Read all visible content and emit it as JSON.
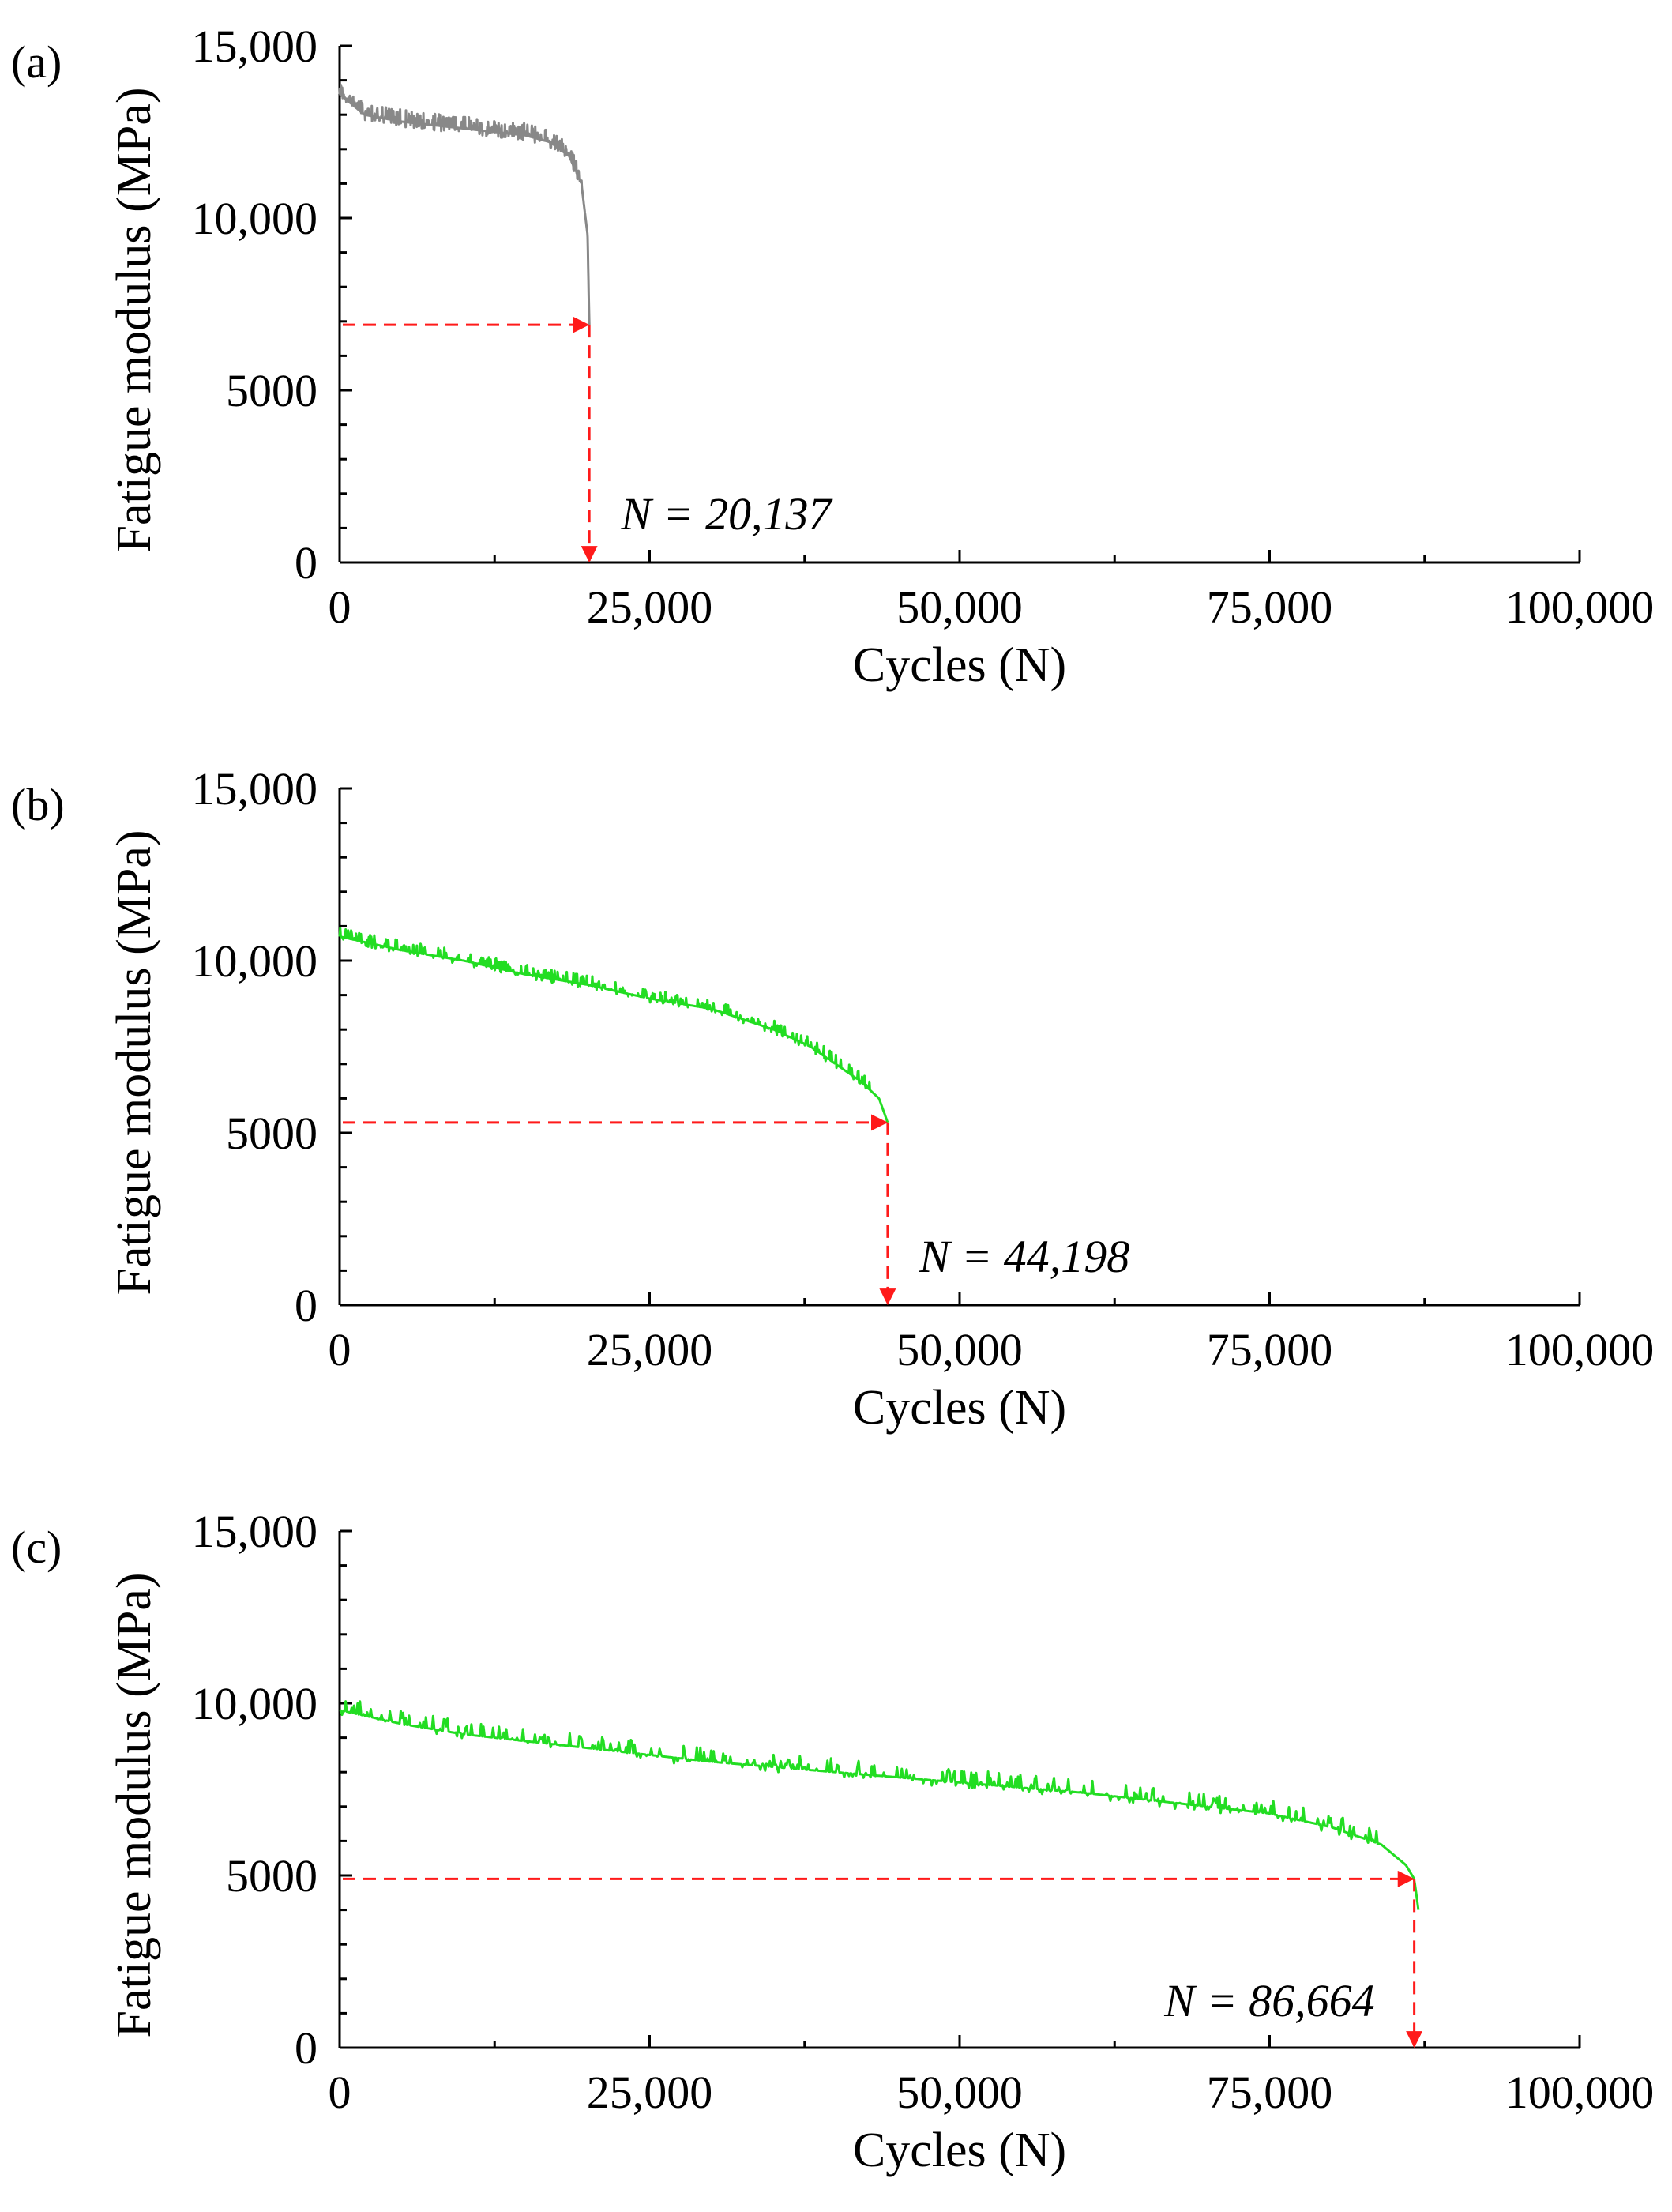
{
  "chart_data": [
    {
      "type": "line",
      "panel_label": "(a)",
      "xlabel": "Cycles (N)",
      "ylabel": "Fatigue modulus (MPa)",
      "xlim": [
        0,
        100000
      ],
      "ylim": [
        0,
        15000
      ],
      "x_ticks": [
        0,
        25000,
        50000,
        75000,
        100000
      ],
      "x_tick_labels": [
        "0",
        "25,000",
        "50,000",
        "75,000",
        "100,000"
      ],
      "y_ticks": [
        0,
        5000,
        10000,
        15000
      ],
      "y_tick_labels": [
        "0",
        "5000",
        "10,000",
        "15,000"
      ],
      "grid": false,
      "series": [
        {
          "name": "fatigue modulus",
          "color": "#888888",
          "noise": 250,
          "x": [
            0,
            1000,
            2000,
            5000,
            10000,
            15000,
            17000,
            18500,
            19500,
            20000,
            20137
          ],
          "y": [
            13600,
            13300,
            13000,
            12800,
            12600,
            12400,
            12200,
            11800,
            11000,
            9500,
            6900
          ]
        }
      ],
      "failure": {
        "n": 20137,
        "modulus": 6900,
        "label": "N = 20,137"
      }
    },
    {
      "type": "line",
      "panel_label": "(b)",
      "xlabel": "Cycles (N)",
      "ylabel": "Fatigue modulus (MPa)",
      "xlim": [
        0,
        100000
      ],
      "ylim": [
        0,
        15000
      ],
      "x_ticks": [
        0,
        25000,
        50000,
        75000,
        100000
      ],
      "x_tick_labels": [
        "0",
        "25,000",
        "50,000",
        "75,000",
        "100,000"
      ],
      "y_ticks": [
        0,
        5000,
        10000,
        15000
      ],
      "y_tick_labels": [
        "0",
        "5000",
        "10,000",
        "15,000"
      ],
      "grid": false,
      "series": [
        {
          "name": "fatigue modulus",
          "color": "#22dd22",
          "noise": 200,
          "x": [
            0,
            5000,
            10000,
            15000,
            20000,
            25000,
            30000,
            35000,
            38000,
            40000,
            42000,
            43500,
            44198
          ],
          "y": [
            10700,
            10300,
            10000,
            9600,
            9300,
            8900,
            8600,
            8000,
            7500,
            7000,
            6500,
            6000,
            5300
          ]
        }
      ],
      "failure": {
        "n": 44198,
        "modulus": 5300,
        "label": "N = 44,198"
      }
    },
    {
      "type": "line",
      "panel_label": "(c)",
      "xlabel": "Cycles (N)",
      "ylabel": "Fatigue modulus (MPa)",
      "xlim": [
        0,
        100000
      ],
      "ylim": [
        0,
        15000
      ],
      "x_ticks": [
        0,
        25000,
        50000,
        75000,
        100000
      ],
      "x_tick_labels": [
        "0",
        "25,000",
        "50,000",
        "75,000",
        "100,000"
      ],
      "y_ticks": [
        0,
        5000,
        10000,
        15000
      ],
      "y_tick_labels": [
        "0",
        "5000",
        "10,000",
        "15,000"
      ],
      "grid": false,
      "series": [
        {
          "name": "fatigue modulus",
          "color": "#22dd22",
          "noise": 280,
          "x": [
            0,
            5000,
            10000,
            20000,
            30000,
            40000,
            50000,
            60000,
            70000,
            75000,
            80000,
            84000,
            86000,
            86664,
            87000
          ],
          "y": [
            9800,
            9400,
            9100,
            8700,
            8300,
            8000,
            7700,
            7400,
            7000,
            6800,
            6400,
            5900,
            5300,
            4900,
            4000
          ]
        }
      ],
      "failure": {
        "n": 86664,
        "modulus": 4900,
        "label": "N = 86,664"
      }
    }
  ]
}
